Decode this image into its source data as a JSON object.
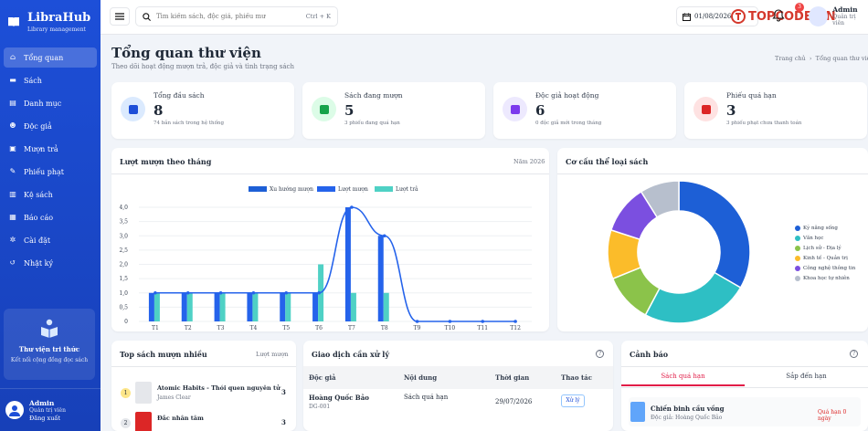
{
  "brand": {
    "title": "LibraHub",
    "subtitle": "Library management"
  },
  "sidebar": {
    "items": [
      {
        "label": "Tổng quan",
        "icon": "home-icon"
      },
      {
        "label": "Sách",
        "icon": "book-icon"
      },
      {
        "label": "Danh mục",
        "icon": "category-icon"
      },
      {
        "label": "Độc giả",
        "icon": "users-icon"
      },
      {
        "label": "Mượn trả",
        "icon": "card-icon"
      },
      {
        "label": "Phiếu phạt",
        "icon": "fine-icon"
      },
      {
        "label": "Kệ sách",
        "icon": "shelf-icon"
      },
      {
        "label": "Báo cáo",
        "icon": "chart-icon"
      },
      {
        "label": "Cài đặt",
        "icon": "gear-icon"
      },
      {
        "label": "Nhật ký",
        "icon": "history-icon"
      }
    ],
    "promo": {
      "title": "Thư viện tri thức",
      "subtitle": "Kết nối cộng đồng đọc sách"
    },
    "user": {
      "name": "Admin",
      "role": "Quản trị viên",
      "logout": "Đăng xuất"
    }
  },
  "topbar": {
    "search_placeholder": "Tìm kiếm sách, độc giả, phiếu mư",
    "shortcut": "Ctrl + K",
    "date": "01/08/2026",
    "notif_count": "3",
    "user_name": "Admin",
    "user_role": "Quản trị viên",
    "watermark": "TOPCODE.VN"
  },
  "page": {
    "title": "Tổng quan thư viện",
    "subtitle": "Theo dõi hoạt động mượn trả, độc giả và tình trạng sách",
    "breadcrumb_home": "Trang chủ",
    "breadcrumb_current": "Tổng quan thư viện"
  },
  "stats": [
    {
      "label": "Tổng đầu sách",
      "value": "8",
      "note": "74 bản sách trong hệ thống",
      "color": "#1d4ed8",
      "bg": "#dbeafe"
    },
    {
      "label": "Sách đang mượn",
      "value": "5",
      "note": "3 phiếu đang quá hạn",
      "color": "#16a34a",
      "bg": "#dcfce7"
    },
    {
      "label": "Độc giả hoạt động",
      "value": "6",
      "note": "0 độc giả mới trong tháng",
      "color": "#7c3aed",
      "bg": "#ede9fe"
    },
    {
      "label": "Phiếu quá hạn",
      "value": "3",
      "note": "3 phiếu phạt chưa thanh toán",
      "color": "#dc2626",
      "bg": "#fee2e2"
    }
  ],
  "chart_card": {
    "title": "Lượt mượn theo tháng",
    "year": "Năm 2026"
  },
  "donut_card": {
    "title": "Cơ cấu thể loại sách"
  },
  "chart_data": [
    {
      "type": "bar",
      "categories": [
        "T1",
        "T2",
        "T3",
        "T4",
        "T5",
        "T6",
        "T7",
        "T8",
        "T9",
        "T10",
        "T11",
        "T12"
      ],
      "series": [
        {
          "name": "Xu hướng mượn",
          "kind": "line",
          "color": "#2563eb",
          "values": [
            1,
            1,
            1,
            1,
            1,
            1,
            4,
            3,
            0,
            0,
            0,
            0
          ]
        },
        {
          "name": "Lượt mượn",
          "kind": "bar",
          "color": "#2563eb",
          "values": [
            1,
            1,
            1,
            1,
            1,
            1,
            4,
            3,
            0,
            0,
            0,
            0
          ]
        },
        {
          "name": "Lượt trả",
          "kind": "bar",
          "color": "#4fd1c5",
          "values": [
            1,
            1,
            1,
            1,
            1,
            2,
            1,
            1,
            0,
            0,
            0,
            0
          ]
        }
      ],
      "ylim": [
        0,
        4
      ],
      "yticks": [
        "0",
        "0,5",
        "1,0",
        "1,5",
        "2,0",
        "2,5",
        "3,0",
        "3,5",
        "4,0"
      ],
      "legend": "top"
    },
    {
      "type": "pie",
      "categories": [
        "Kỹ năng sống",
        "Văn học",
        "Lịch sử - Địa lý",
        "Kinh tế - Quản trị",
        "Công nghệ thông tin",
        "Khoa học tự nhiên"
      ],
      "values": [
        3,
        2.2,
        1,
        1,
        1,
        0.8
      ],
      "colors": [
        "#1d5fd6",
        "#2ebfc4",
        "#8bc34a",
        "#fbbc2a",
        "#7b4fe0",
        "#b7bfcd"
      ],
      "legend": "right"
    }
  ],
  "top_books": {
    "title": "Top sách mượn nhiều",
    "sub": "Lượt mượn",
    "items": [
      {
        "rank": "1",
        "title": "Atomic Habits - Thói quen nguyên tử",
        "author": "James Clear",
        "count": "3"
      },
      {
        "rank": "2",
        "title": "Đắc nhân tâm",
        "author": "",
        "count": "3"
      }
    ]
  },
  "transactions": {
    "title": "Giao dịch cần xử lý",
    "headers": [
      "Độc giả",
      "Nội dung",
      "Thời gian",
      "Thao tác"
    ],
    "rows": [
      {
        "reader": "Hoàng Quốc Bảo",
        "code": "DG-001",
        "content": "Sách quá hạn",
        "time": "29/07/2026",
        "action": "Xử lý"
      }
    ]
  },
  "alerts": {
    "title": "Cảnh báo",
    "tabs": [
      "Sách quá hạn",
      "Sắp đến hạn"
    ],
    "items": [
      {
        "title": "Chiến binh cầu vồng",
        "sub": "Độc giả: Hoàng Quốc Bảo",
        "status": "Quá hạn 0 ngày"
      }
    ]
  }
}
